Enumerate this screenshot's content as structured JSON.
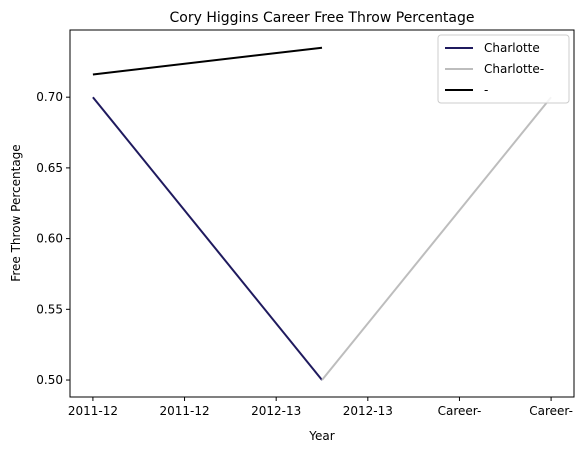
{
  "chart_data": {
    "type": "line",
    "title": "Cory Higgins Career Free Throw Percentage",
    "xlabel": "Year",
    "ylabel": "Free Throw Percentage",
    "x_tick_labels": [
      "2011-12",
      "2011-12",
      "2012-13",
      "2012-13",
      "Career-",
      "Career-"
    ],
    "y_ticks": [
      0.5,
      0.55,
      0.6,
      0.65,
      0.7
    ],
    "y_tick_labels": [
      "0.50",
      "0.55",
      "0.60",
      "0.65",
      "0.70"
    ],
    "xlim": [
      -0.25,
      5.25
    ],
    "ylim": [
      0.488,
      0.7475
    ],
    "grid": false,
    "legend_position": "top-right",
    "series": [
      {
        "name": "Charlotte",
        "color": "#1f1a5e",
        "x": [
          0,
          2.5
        ],
        "y": [
          0.7,
          0.5
        ]
      },
      {
        "name": "Charlotte-",
        "color": "#bdbdbd",
        "x": [
          2.5,
          5
        ],
        "y": [
          0.5,
          0.7
        ]
      },
      {
        "name": "-",
        "color": "#000000",
        "x": [
          0,
          2.5
        ],
        "y": [
          0.716,
          0.735
        ]
      }
    ]
  }
}
